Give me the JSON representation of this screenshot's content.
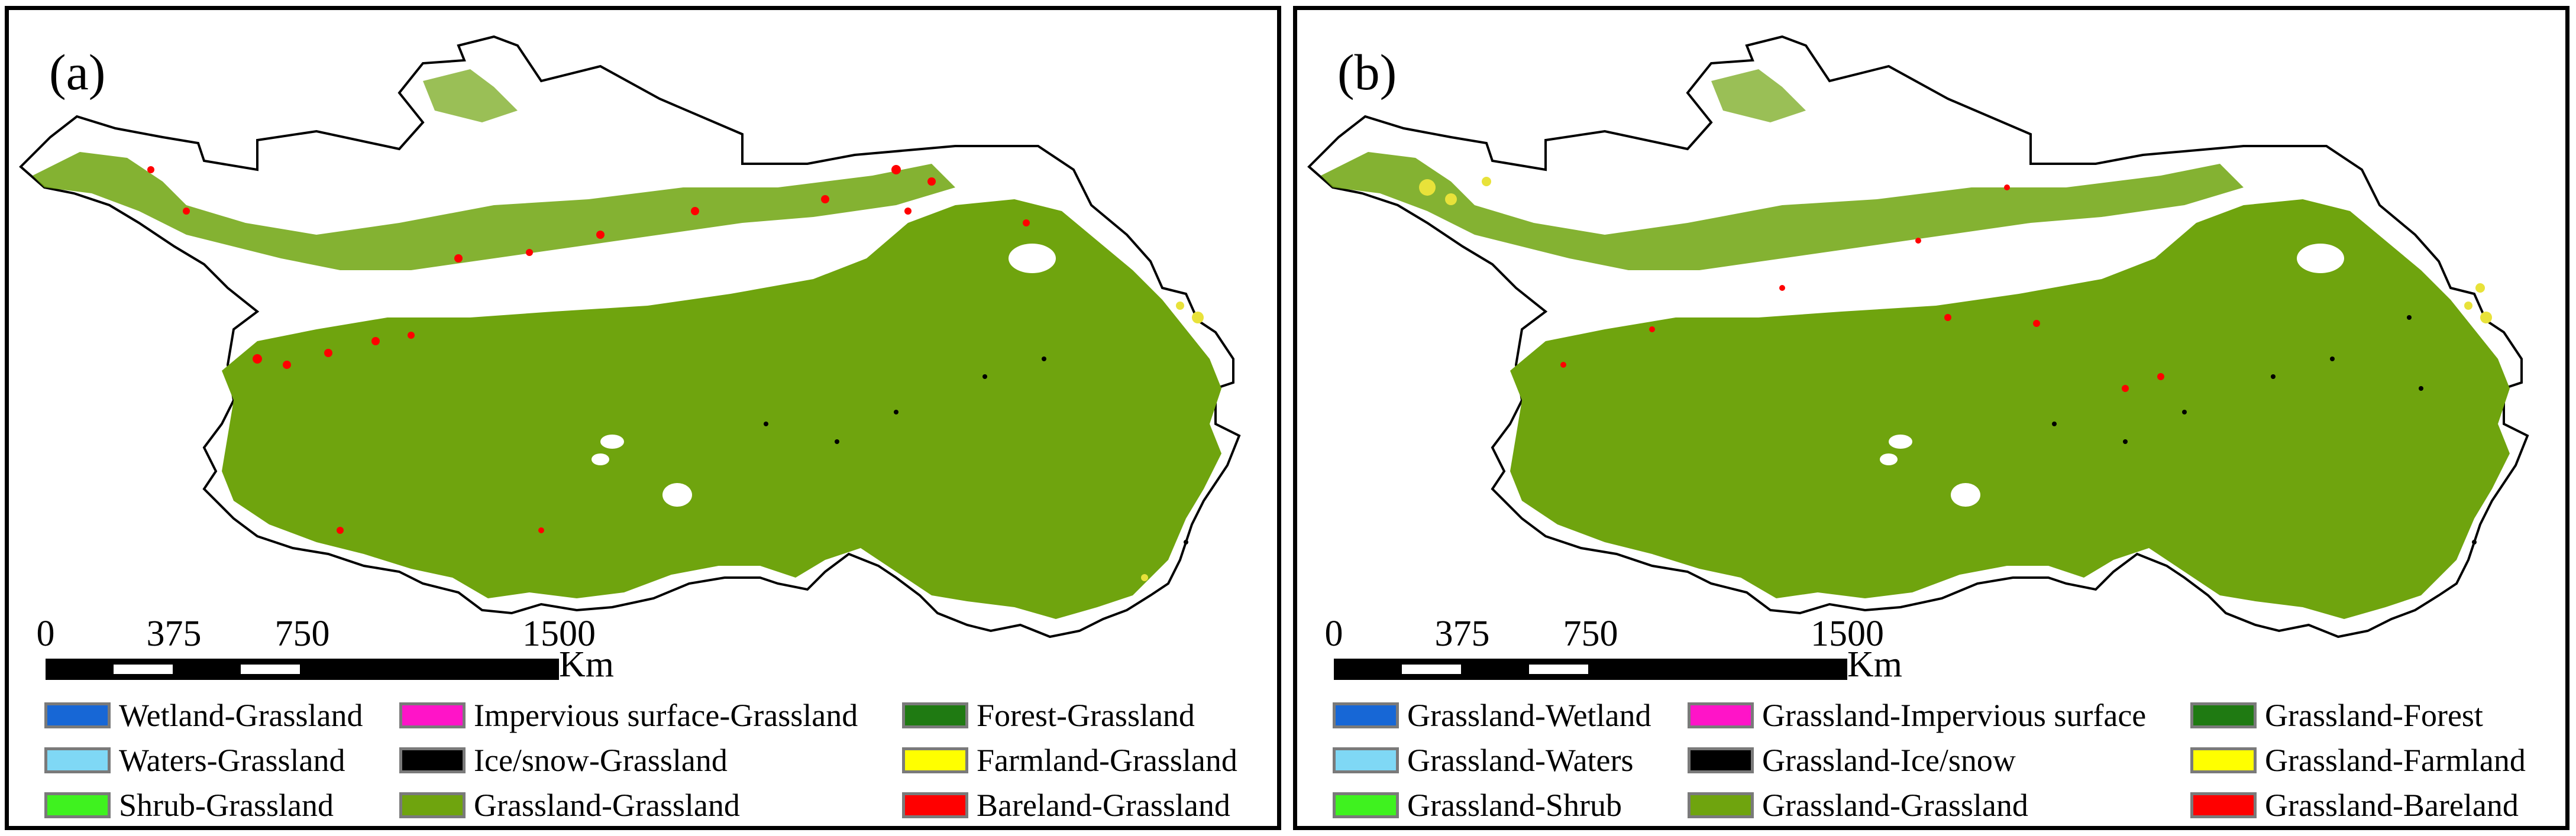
{
  "panels": [
    {
      "label": "(a)",
      "scalebar": {
        "ticks": [
          "0",
          "375",
          "750",
          "1500"
        ],
        "unit": "Km"
      },
      "legend": [
        {
          "label": "Wetland-Grassland",
          "color": "#1767d6"
        },
        {
          "label": "Impervious surface-Grassland",
          "color": "#ff14c8"
        },
        {
          "label": "Forest-Grassland",
          "color": "#1f7a12"
        },
        {
          "label": "Waters-Grassland",
          "color": "#7fd8f5"
        },
        {
          "label": "Ice/snow-Grassland",
          "color": "#000000"
        },
        {
          "label": "Farmland-Grassland",
          "color": "#ffff00"
        },
        {
          "label": "Shrub-Grassland",
          "color": "#3ff21f"
        },
        {
          "label": "Grassland-Grassland",
          "color": "#6fa40e"
        },
        {
          "label": "Bareland-Grassland",
          "color": "#ff0000"
        }
      ]
    },
    {
      "label": "(b)",
      "scalebar": {
        "ticks": [
          "0",
          "375",
          "750",
          "1500"
        ],
        "unit": "Km"
      },
      "legend": [
        {
          "label": "Grassland-Wetland",
          "color": "#1767d6"
        },
        {
          "label": "Grassland-Impervious surface",
          "color": "#ff14c8"
        },
        {
          "label": "Grassland-Forest",
          "color": "#1f7a12"
        },
        {
          "label": "Grassland-Waters",
          "color": "#7fd8f5"
        },
        {
          "label": "Grassland-Ice/snow",
          "color": "#000000"
        },
        {
          "label": "Grassland-Farmland",
          "color": "#ffff00"
        },
        {
          "label": "Grassland-Shrub",
          "color": "#3ff21f"
        },
        {
          "label": "Grassland-Grassland",
          "color": "#6fa40e"
        },
        {
          "label": "Grassland-Bareland",
          "color": "#ff0000"
        }
      ]
    }
  ]
}
